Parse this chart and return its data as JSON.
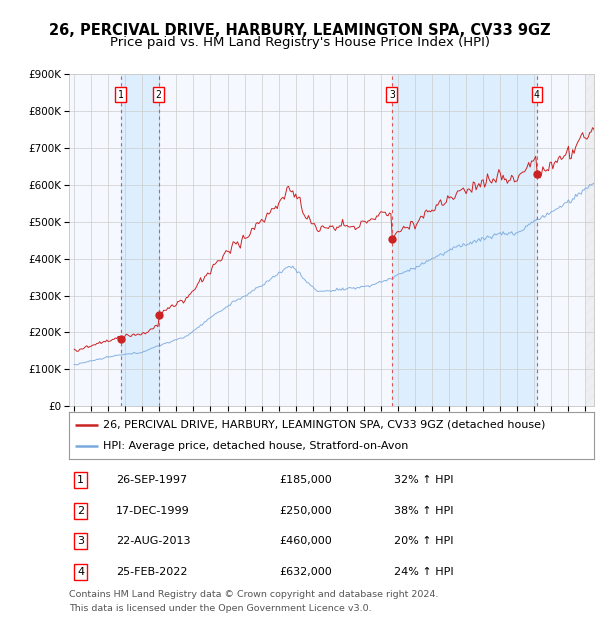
{
  "title": "26, PERCIVAL DRIVE, HARBURY, LEAMINGTON SPA, CV33 9GZ",
  "subtitle": "Price paid vs. HM Land Registry's House Price Index (HPI)",
  "legend_line1": "26, PERCIVAL DRIVE, HARBURY, LEAMINGTON SPA, CV33 9GZ (detached house)",
  "legend_line2": "HPI: Average price, detached house, Stratford-on-Avon",
  "footer1": "Contains HM Land Registry data © Crown copyright and database right 2024.",
  "footer2": "This data is licensed under the Open Government Licence v3.0.",
  "transactions": [
    {
      "label": "1",
      "date_yr": 1997.74,
      "price": 185000
    },
    {
      "label": "2",
      "date_yr": 1999.96,
      "price": 250000
    },
    {
      "label": "3",
      "date_yr": 2013.64,
      "price": 460000
    },
    {
      "label": "4",
      "date_yr": 2022.15,
      "price": 632000
    }
  ],
  "table_rows": [
    {
      "label": "1",
      "date_str": "26-SEP-1997",
      "price_str": "£185,000",
      "pct_str": "32% ↑ HPI"
    },
    {
      "label": "2",
      "date_str": "17-DEC-1999",
      "price_str": "£250,000",
      "pct_str": "38% ↑ HPI"
    },
    {
      "label": "3",
      "date_str": "22-AUG-2013",
      "price_str": "£460,000",
      "pct_str": "20% ↑ HPI"
    },
    {
      "label": "4",
      "date_str": "25-FEB-2022",
      "price_str": "£632,000",
      "pct_str": "24% ↑ HPI"
    }
  ],
  "hpi_color": "#7aaadd",
  "price_color": "#cc2222",
  "dot_color": "#cc2222",
  "vline_color": "#dd5555",
  "shade_color": "#ddeeff",
  "grid_color": "#cccccc",
  "bg_color": "#ffffff",
  "plot_bg_color": "#f5f8ff",
  "ylim": [
    0,
    900000
  ],
  "yticks": [
    0,
    100000,
    200000,
    300000,
    400000,
    500000,
    600000,
    700000,
    800000,
    900000
  ],
  "xlim_start": 1994.7,
  "xlim_end": 2025.5,
  "title_fontsize": 10.5,
  "subtitle_fontsize": 9.5,
  "tick_fontsize": 7.5,
  "legend_fontsize": 8,
  "table_fontsize": 8,
  "footer_fontsize": 6.8
}
